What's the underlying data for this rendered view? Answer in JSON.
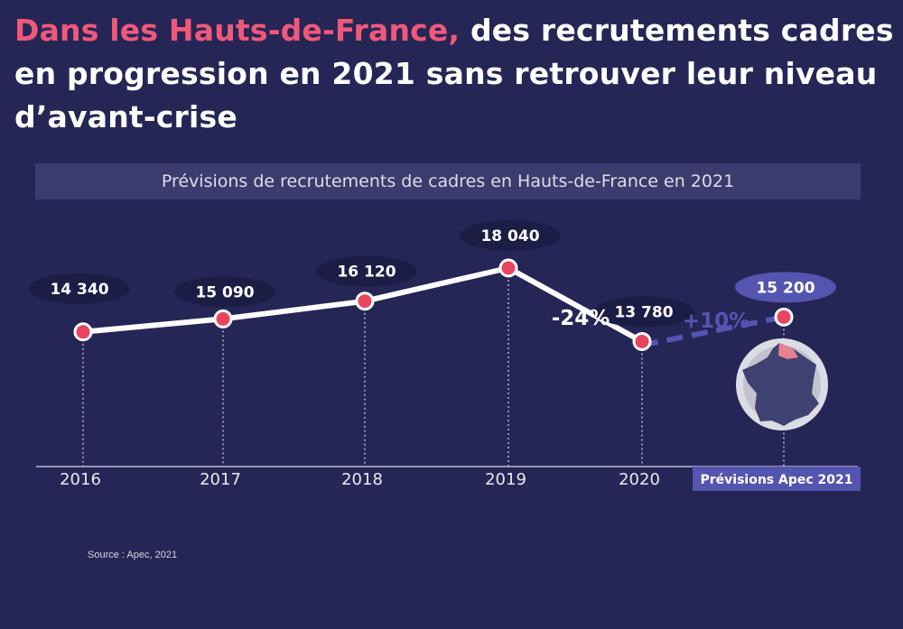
{
  "headline": {
    "highlight": "Dans les Hauts-de-France,",
    "rest": " des recrutements cadres en progression en 2021 sans retrouver leur niveau d’avant-crise"
  },
  "chart_subtitle": "Prévisions de recrutements de cadres en Hauts-de-France en 2021",
  "source": "Source : Apec, 2021",
  "colors": {
    "background": "#252656",
    "line": "#ffffff",
    "point": "#e8445f",
    "forecast": "#5455b0",
    "label_bubble": "#1c1d45"
  },
  "chart_data": {
    "type": "line",
    "categories": [
      "2016",
      "2017",
      "2018",
      "2019",
      "2020",
      "2021"
    ],
    "x_tick_labels": [
      "2016",
      "2017",
      "2018",
      "2019",
      "2020",
      "Prévisions Apec 2021"
    ],
    "values": [
      14340,
      15090,
      16120,
      18040,
      13780,
      15200
    ],
    "value_labels": [
      "14 340",
      "15 090",
      "16 120",
      "18 040",
      "13 780",
      "15 200"
    ],
    "forecast_from_index": 4,
    "annotations": [
      {
        "text": "-24%",
        "between": [
          3,
          4
        ]
      },
      {
        "text": "+10%",
        "between": [
          4,
          5
        ]
      }
    ],
    "inset": "france-map-icon",
    "ylim": [
      0,
      20000
    ],
    "grid": false
  }
}
